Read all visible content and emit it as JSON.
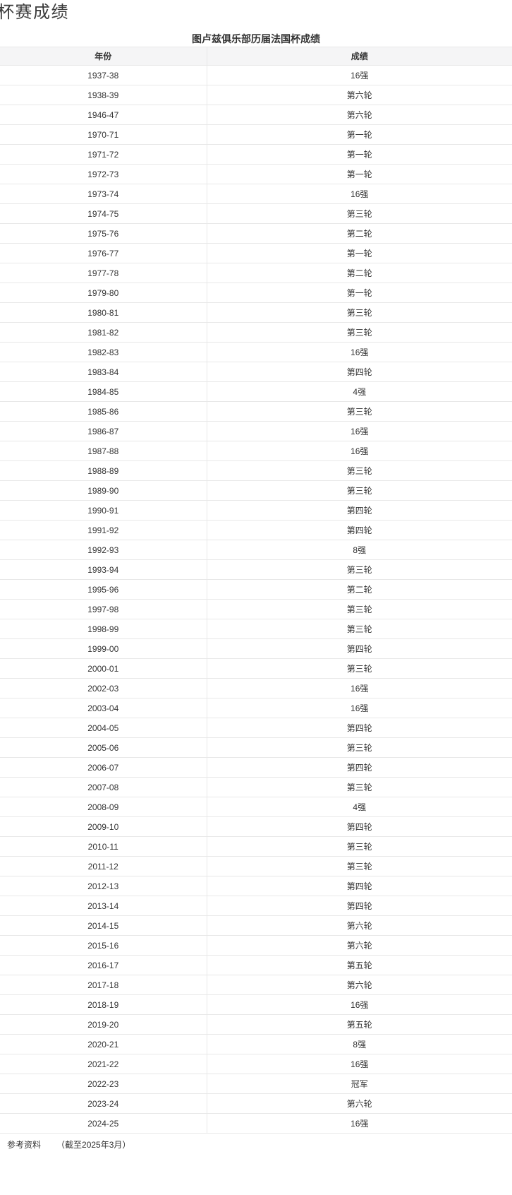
{
  "section": {
    "heading": "杯赛成绩"
  },
  "table": {
    "title": "图卢兹俱乐部历届法国杯成绩",
    "columns": [
      "年份",
      "成绩"
    ],
    "rows": [
      {
        "year": "1937-38",
        "result": "16强"
      },
      {
        "year": "1938-39",
        "result": "第六轮"
      },
      {
        "year": "1946-47",
        "result": "第六轮"
      },
      {
        "year": "1970-71",
        "result": "第一轮"
      },
      {
        "year": "1971-72",
        "result": "第一轮"
      },
      {
        "year": "1972-73",
        "result": "第一轮"
      },
      {
        "year": "1973-74",
        "result": "16强"
      },
      {
        "year": "1974-75",
        "result": "第三轮"
      },
      {
        "year": "1975-76",
        "result": "第二轮"
      },
      {
        "year": "1976-77",
        "result": "第一轮"
      },
      {
        "year": "1977-78",
        "result": "第二轮"
      },
      {
        "year": "1979-80",
        "result": "第一轮"
      },
      {
        "year": "1980-81",
        "result": "第三轮"
      },
      {
        "year": "1981-82",
        "result": "第三轮"
      },
      {
        "year": "1982-83",
        "result": "16强"
      },
      {
        "year": "1983-84",
        "result": "第四轮"
      },
      {
        "year": "1984-85",
        "result": "4强"
      },
      {
        "year": "1985-86",
        "result": "第三轮"
      },
      {
        "year": "1986-87",
        "result": "16强"
      },
      {
        "year": "1987-88",
        "result": "16强"
      },
      {
        "year": "1988-89",
        "result": "第三轮"
      },
      {
        "year": "1989-90",
        "result": "第三轮"
      },
      {
        "year": "1990-91",
        "result": "第四轮"
      },
      {
        "year": "1991-92",
        "result": "第四轮"
      },
      {
        "year": "1992-93",
        "result": "8强"
      },
      {
        "year": "1993-94",
        "result": "第三轮"
      },
      {
        "year": "1995-96",
        "result": "第二轮"
      },
      {
        "year": "1997-98",
        "result": "第三轮"
      },
      {
        "year": "1998-99",
        "result": "第三轮"
      },
      {
        "year": "1999-00",
        "result": "第四轮"
      },
      {
        "year": "2000-01",
        "result": "第三轮"
      },
      {
        "year": "2002-03",
        "result": "16强"
      },
      {
        "year": "2003-04",
        "result": "16强"
      },
      {
        "year": "2004-05",
        "result": "第四轮"
      },
      {
        "year": "2005-06",
        "result": "第三轮"
      },
      {
        "year": "2006-07",
        "result": "第四轮"
      },
      {
        "year": "2007-08",
        "result": "第三轮"
      },
      {
        "year": "2008-09",
        "result": "4强"
      },
      {
        "year": "2009-10",
        "result": "第四轮"
      },
      {
        "year": "2010-11",
        "result": "第三轮"
      },
      {
        "year": "2011-12",
        "result": "第三轮"
      },
      {
        "year": "2012-13",
        "result": "第四轮"
      },
      {
        "year": "2013-14",
        "result": "第四轮"
      },
      {
        "year": "2014-15",
        "result": "第六轮"
      },
      {
        "year": "2015-16",
        "result": "第六轮"
      },
      {
        "year": "2016-17",
        "result": "第五轮"
      },
      {
        "year": "2017-18",
        "result": "第六轮"
      },
      {
        "year": "2018-19",
        "result": "16强"
      },
      {
        "year": "2019-20",
        "result": "第五轮"
      },
      {
        "year": "2020-21",
        "result": "8强"
      },
      {
        "year": "2021-22",
        "result": "16强"
      },
      {
        "year": "2022-23",
        "result": "冠军"
      },
      {
        "year": "2023-24",
        "result": "第六轮"
      },
      {
        "year": "2024-25",
        "result": "16强"
      }
    ]
  },
  "footer": {
    "reference_label": "参考资料",
    "note": "（截至2025年3月）"
  },
  "colors": {
    "header_bg": "#f5f5f6",
    "border": "#e8e8e8",
    "text": "#333333"
  }
}
